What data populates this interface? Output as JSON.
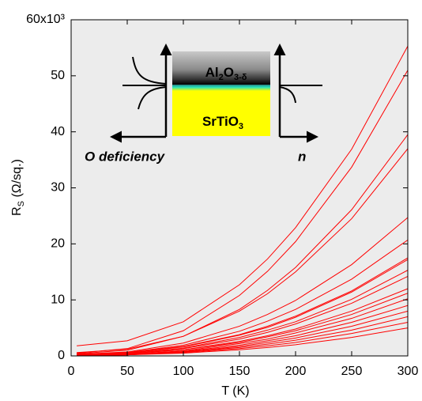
{
  "chart_data": {
    "type": "line",
    "xlabel": "T (K)",
    "ylabel": {
      "main": "R",
      "sub": "S",
      "rest": " (Ω/sq.)"
    },
    "x": [
      5,
      50,
      100,
      150,
      175,
      200,
      250,
      300
    ],
    "xlim": [
      0,
      300
    ],
    "xticks": [
      0,
      50,
      100,
      150,
      200,
      250,
      300
    ],
    "ylim": [
      0,
      60
    ],
    "yticks": [
      0,
      10,
      20,
      30,
      40,
      50,
      {
        "value": 60,
        "label": "60x10³"
      }
    ],
    "series": [
      {
        "color": "#ff0000",
        "values": [
          1.8,
          2.7,
          6.1,
          12.7,
          17.3,
          22.9,
          36.9,
          55.3
        ]
      },
      {
        "color": "#ff0000",
        "values": [
          0.5,
          1.3,
          4.5,
          10.8,
          15.1,
          20.4,
          33.7,
          51
        ]
      },
      {
        "color": "#ff0000",
        "values": [
          0.4,
          1.0,
          3.5,
          8.3,
          11.7,
          15.8,
          26.1,
          39.5
        ]
      },
      {
        "color": "#ff0000",
        "values": [
          0.6,
          1.2,
          3.5,
          8.0,
          11.1,
          15.0,
          24.5,
          37
        ]
      },
      {
        "color": "#ff0000",
        "values": [
          0.3,
          0.7,
          2.3,
          5.3,
          7.4,
          9.9,
          16.3,
          24.7
        ]
      },
      {
        "color": "#ff0000",
        "values": [
          0.3,
          0.6,
          1.9,
          4.4,
          6.2,
          8.3,
          13.7,
          20.7
        ]
      },
      {
        "color": "#ff0000",
        "values": [
          0.3,
          0.6,
          1.7,
          3.8,
          5.3,
          7.1,
          11.6,
          17.5
        ]
      },
      {
        "color": "#ff0000",
        "values": [
          0.2,
          0.5,
          1.6,
          3.7,
          5.1,
          6.9,
          11.4,
          17.2
        ]
      },
      {
        "color": "#ff0000",
        "values": [
          0.2,
          0.4,
          1.4,
          3.3,
          4.6,
          6.1,
          10.1,
          15.3
        ]
      },
      {
        "color": "#ff0000",
        "values": [
          0.2,
          0.4,
          1.3,
          3.0,
          4.2,
          5.7,
          9.4,
          14.2
        ]
      },
      {
        "color": "#ff0000",
        "values": [
          0.2,
          0.4,
          1.1,
          2.6,
          3.6,
          4.8,
          8.0,
          12
        ]
      },
      {
        "color": "#ff0000",
        "values": [
          0.2,
          0.4,
          1.1,
          2.4,
          3.4,
          4.5,
          7.4,
          11.2
        ]
      },
      {
        "color": "#ff0000",
        "values": [
          0.1,
          0.3,
          0.9,
          2.2,
          3.0,
          4.1,
          6.7,
          10.2
        ]
      },
      {
        "color": "#ff0000",
        "values": [
          0.1,
          0.2,
          0.8,
          1.9,
          2.7,
          3.6,
          6.0,
          9
        ]
      },
      {
        "color": "#ff0000",
        "values": [
          0.1,
          0.2,
          0.7,
          1.7,
          2.4,
          3.2,
          5.3,
          8
        ]
      },
      {
        "color": "#ff0000",
        "values": [
          0.1,
          0.2,
          0.7,
          1.5,
          2.1,
          2.8,
          4.6,
          7
        ]
      },
      {
        "color": "#ff0000",
        "values": [
          0.1,
          0.2,
          0.6,
          1.3,
          1.8,
          2.4,
          4.0,
          6
        ]
      },
      {
        "color": "#ff0000",
        "values": [
          0.1,
          0.2,
          0.5,
          1.1,
          1.5,
          2.0,
          3.3,
          5
        ]
      }
    ],
    "inset": {
      "top_layer": [
        "Al",
        "2",
        "O",
        "3-δ"
      ],
      "substrate": [
        "SrTiO",
        "3"
      ],
      "left_axis": "O deficiency",
      "right_axis": "n"
    }
  }
}
